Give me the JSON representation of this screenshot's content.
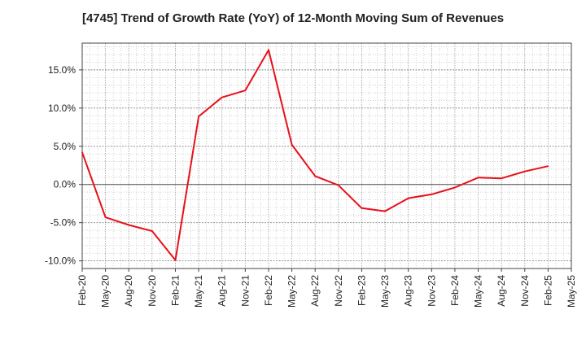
{
  "chart_data": {
    "type": "line",
    "title": "[4745]  Trend of Growth Rate (YoY) of 12-Month Moving Sum of Revenues",
    "xlabel": "",
    "ylabel": "",
    "x_tick_labels": [
      "Feb-20",
      "May-20",
      "Aug-20",
      "Nov-20",
      "Feb-21",
      "May-21",
      "Aug-21",
      "Nov-21",
      "Feb-22",
      "May-22",
      "Aug-22",
      "Nov-22",
      "Feb-23",
      "May-23",
      "Aug-23",
      "Nov-23",
      "Feb-24",
      "May-24",
      "Aug-24",
      "Nov-24",
      "Feb-25",
      "May-25"
    ],
    "y_tick_labels": [
      "15.0%",
      "10.0%",
      "5.0%",
      "0.0%",
      "-5.0%",
      "-10.0%"
    ],
    "y_ticks": [
      15,
      10,
      5,
      0,
      -5,
      -10
    ],
    "ylim": [
      -11,
      18.5
    ],
    "grid": true,
    "series": [
      {
        "color": "#e8101a",
        "x": [
          "Feb-20",
          "May-20",
          "Aug-20",
          "Nov-20",
          "Feb-21",
          "May-21",
          "Aug-21",
          "Nov-21",
          "Feb-22",
          "May-22",
          "Aug-22",
          "Nov-22",
          "Feb-23",
          "May-23",
          "Aug-23",
          "Nov-23",
          "Feb-24",
          "May-24",
          "Aug-24",
          "Nov-24",
          "Feb-25"
        ],
        "values": [
          4.2,
          -4.3,
          -5.3,
          -6.1,
          -9.9,
          8.9,
          11.4,
          12.3,
          17.6,
          5.2,
          1.1,
          -0.1,
          -3.1,
          -3.5,
          -1.8,
          -1.3,
          -0.4,
          0.9,
          0.8,
          1.7,
          2.4
        ]
      }
    ]
  }
}
